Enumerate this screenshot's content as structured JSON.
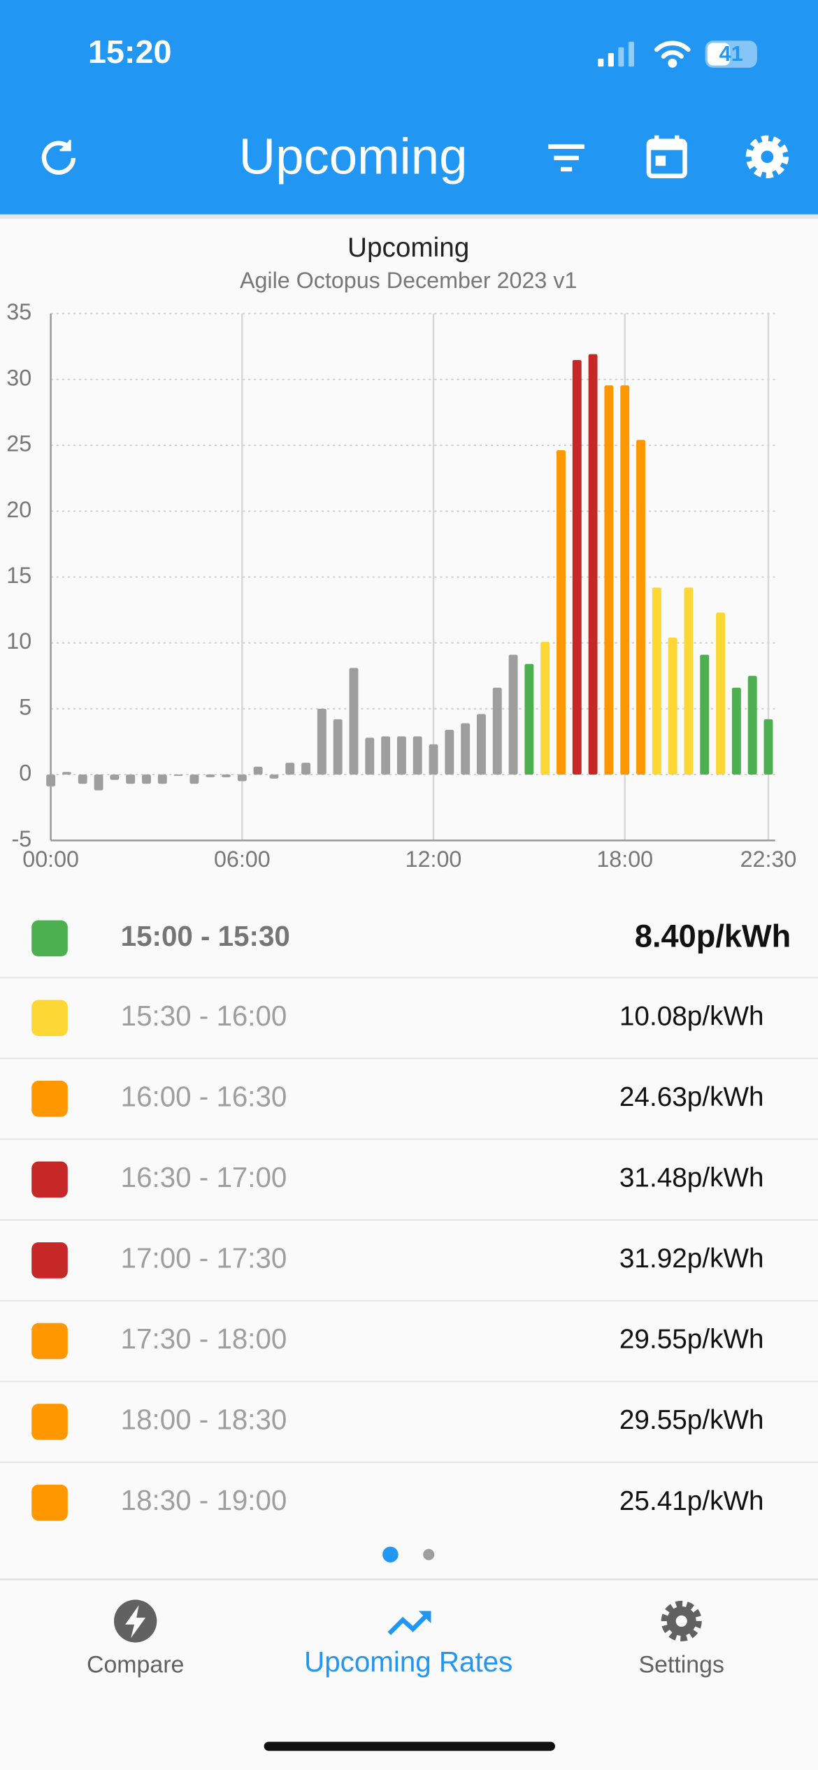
{
  "status_bar": {
    "time": "15:20",
    "battery": "41"
  },
  "app_bar": {
    "title": "Upcoming"
  },
  "chart_data": {
    "type": "bar",
    "title": "Upcoming",
    "subtitle": "Agile Octopus December 2023 v1",
    "categories": [
      "00:00",
      null,
      null,
      null,
      null,
      null,
      null,
      null,
      null,
      null,
      null,
      null,
      "06:00",
      null,
      null,
      null,
      null,
      null,
      null,
      null,
      null,
      null,
      null,
      null,
      "12:00",
      null,
      null,
      null,
      null,
      null,
      null,
      null,
      null,
      null,
      null,
      null,
      "18:00",
      null,
      null,
      null,
      null,
      null,
      null,
      null,
      null,
      "22:30"
    ],
    "values": [
      -0.9,
      0.2,
      -0.7,
      -1.2,
      -0.4,
      -0.7,
      -0.7,
      -0.7,
      -0.1,
      -0.7,
      -0.2,
      -0.2,
      -0.5,
      0.6,
      -0.3,
      0.9,
      0.9,
      5.0,
      4.2,
      8.1,
      2.8,
      2.9,
      2.9,
      2.9,
      2.3,
      3.4,
      3.9,
      4.6,
      6.6,
      9.1,
      8.4,
      10.08,
      24.63,
      31.48,
      31.92,
      29.55,
      29.55,
      25.41,
      14.2,
      10.4,
      14.2,
      9.1,
      12.3,
      6.6,
      7.5,
      4.2
    ],
    "colors": [
      "#9e9e9e",
      "#9e9e9e",
      "#9e9e9e",
      "#9e9e9e",
      "#9e9e9e",
      "#9e9e9e",
      "#9e9e9e",
      "#9e9e9e",
      "#9e9e9e",
      "#9e9e9e",
      "#9e9e9e",
      "#9e9e9e",
      "#9e9e9e",
      "#9e9e9e",
      "#9e9e9e",
      "#9e9e9e",
      "#9e9e9e",
      "#9e9e9e",
      "#9e9e9e",
      "#9e9e9e",
      "#9e9e9e",
      "#9e9e9e",
      "#9e9e9e",
      "#9e9e9e",
      "#9e9e9e",
      "#9e9e9e",
      "#9e9e9e",
      "#9e9e9e",
      "#9e9e9e",
      "#9e9e9e",
      "#4caf50",
      "#fdd835",
      "#ff9800",
      "#c62828",
      "#c62828",
      "#ff9800",
      "#ff9800",
      "#ff9800",
      "#fdd835",
      "#fdd835",
      "#fdd835",
      "#4caf50",
      "#fdd835",
      "#4caf50",
      "#4caf50",
      "#4caf50"
    ],
    "ylim": [
      -5,
      35
    ],
    "yticks": [
      -5,
      0,
      5,
      10,
      15,
      20,
      25,
      30,
      35
    ],
    "grid": true
  },
  "rates": [
    {
      "color": "#4caf50",
      "time": "15:00 - 15:30",
      "price": "8.40p/kWh"
    },
    {
      "color": "#fdd835",
      "time": "15:30 - 16:00",
      "price": "10.08p/kWh"
    },
    {
      "color": "#ff9800",
      "time": "16:00 - 16:30",
      "price": "24.63p/kWh"
    },
    {
      "color": "#c62828",
      "time": "16:30 - 17:00",
      "price": "31.48p/kWh"
    },
    {
      "color": "#c62828",
      "time": "17:00 - 17:30",
      "price": "31.92p/kWh"
    },
    {
      "color": "#ff9800",
      "time": "17:30 - 18:00",
      "price": "29.55p/kWh"
    },
    {
      "color": "#ff9800",
      "time": "18:00 - 18:30",
      "price": "29.55p/kWh"
    },
    {
      "color": "#ff9800",
      "time": "18:30 - 19:00",
      "price": "25.41p/kWh"
    }
  ],
  "nav": {
    "compare": "Compare",
    "upcoming": "Upcoming Rates",
    "settings": "Settings"
  }
}
